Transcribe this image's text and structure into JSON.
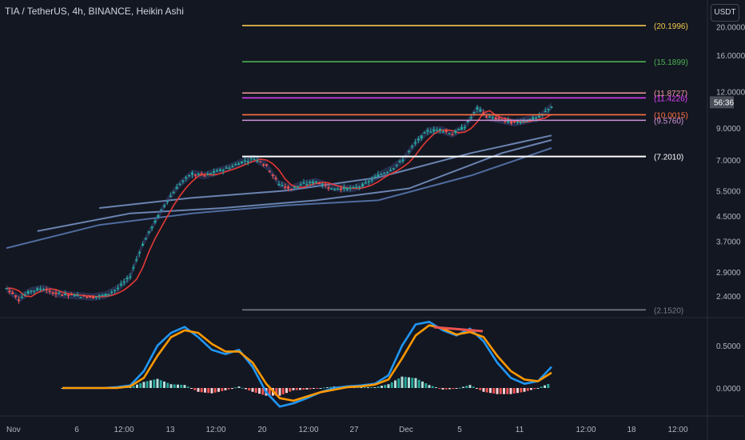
{
  "header": {
    "title": "TIA / TetherUS, 4h, BINANCE, Heikin Ashi",
    "currency_button": "USDT"
  },
  "price_badge": {
    "countdown": "56:36"
  },
  "colors": {
    "background": "#131722",
    "up": "#26a69a",
    "down": "#ef5350",
    "lvl_20": "#f2c94c",
    "lvl_15": "#4caf50",
    "lvl_11_87": "#ef9a9a",
    "lvl_11_42": "#e040fb",
    "lvl_10": "#ff7043",
    "lvl_9_57": "#ce93d8",
    "lvl_7_2": "#ffffff",
    "lvl_2_15": "#787b86",
    "osc_fast": "#2196f3",
    "osc_slow": "#ff9800"
  },
  "chart_data": [
    {
      "type": "candlestick",
      "scale": "log",
      "y_ticks": [
        "20.0000",
        "16.0000",
        "12.0000",
        "9.0000",
        "7.0000",
        "5.5000",
        "4.5000",
        "3.7000",
        "2.9000",
        "2.4000"
      ],
      "x_ticks": [
        "Nov",
        "6",
        "12:00",
        "13",
        "12:00",
        "20",
        "12:00",
        "27",
        "Dec",
        "5",
        "11",
        "12:00",
        "18",
        "12:00"
      ],
      "levels": [
        {
          "label": "(20.1996)",
          "value": 20.1996,
          "color": "lvl_20"
        },
        {
          "label": "(15.1899)",
          "value": 15.1899,
          "color": "lvl_15"
        },
        {
          "label": "(11.8727)",
          "value": 11.8727,
          "color": "lvl_11_87"
        },
        {
          "label": "(11.4226)",
          "value": 11.4226,
          "color": "lvl_11_42"
        },
        {
          "label": "(10.0015)",
          "value": 10.0015,
          "color": "lvl_10"
        },
        {
          "label": "(9.5760)",
          "value": 9.576,
          "color": "lvl_9_57"
        },
        {
          "label": "(7.2010)",
          "value": 7.201,
          "color": "lvl_7_2"
        },
        {
          "label": "(2.1520)",
          "value": 2.152,
          "color": "lvl_2_15"
        }
      ],
      "price_path": [
        [
          0,
          2.55
        ],
        [
          4,
          2.35
        ],
        [
          8,
          2.5
        ],
        [
          12,
          2.55
        ],
        [
          16,
          2.45
        ],
        [
          20,
          2.42
        ],
        [
          24,
          2.4
        ],
        [
          28,
          2.38
        ],
        [
          32,
          2.42
        ],
        [
          36,
          2.55
        ],
        [
          40,
          2.8
        ],
        [
          44,
          3.6
        ],
        [
          48,
          4.3
        ],
        [
          52,
          5.1
        ],
        [
          56,
          5.8
        ],
        [
          60,
          6.3
        ],
        [
          64,
          6.2
        ],
        [
          68,
          6.4
        ],
        [
          72,
          6.6
        ],
        [
          76,
          6.9
        ],
        [
          80,
          7.1
        ],
        [
          84,
          6.7
        ],
        [
          88,
          5.8
        ],
        [
          92,
          5.6
        ],
        [
          96,
          5.8
        ],
        [
          100,
          5.9
        ],
        [
          104,
          5.7
        ],
        [
          108,
          5.6
        ],
        [
          112,
          5.6
        ],
        [
          116,
          5.8
        ],
        [
          120,
          6.2
        ],
        [
          124,
          6.5
        ],
        [
          128,
          7.0
        ],
        [
          132,
          8.0
        ],
        [
          136,
          8.8
        ],
        [
          140,
          8.9
        ],
        [
          144,
          8.6
        ],
        [
          148,
          9.1
        ],
        [
          152,
          10.5
        ],
        [
          156,
          9.8
        ],
        [
          160,
          9.6
        ],
        [
          164,
          9.4
        ],
        [
          168,
          9.6
        ],
        [
          172,
          9.8
        ],
        [
          176,
          10.7
        ]
      ],
      "moving_averages": [
        [
          [
            0,
            3.5
          ],
          [
            30,
            4.2
          ],
          [
            60,
            4.6
          ],
          [
            90,
            4.9
          ],
          [
            120,
            5.1
          ],
          [
            150,
            6.2
          ],
          [
            176,
            7.7
          ]
        ],
        [
          [
            10,
            4.0
          ],
          [
            40,
            4.6
          ],
          [
            70,
            4.8
          ],
          [
            100,
            5.1
          ],
          [
            130,
            5.6
          ],
          [
            160,
            7.4
          ],
          [
            176,
            8.2
          ]
        ],
        [
          [
            30,
            4.8
          ],
          [
            60,
            5.2
          ],
          [
            90,
            5.5
          ],
          [
            120,
            6.1
          ],
          [
            150,
            7.4
          ],
          [
            176,
            8.5
          ]
        ]
      ]
    },
    {
      "type": "line",
      "y_ticks": [
        "0.5000",
        "0.0000"
      ],
      "series": [
        {
          "color": "osc_fast",
          "values": [
            0,
            0,
            0,
            0,
            0.01,
            0.03,
            0.2,
            0.5,
            0.65,
            0.72,
            0.6,
            0.45,
            0.4,
            0.45,
            0.25,
            -0.05,
            -0.22,
            -0.18,
            -0.12,
            -0.05,
            0,
            0.02,
            0.03,
            0.05,
            0.15,
            0.5,
            0.75,
            0.78,
            0.68,
            0.62,
            0.7,
            0.55,
            0.3,
            0.12,
            0.05,
            0.08,
            0.25
          ]
        },
        {
          "color": "osc_slow",
          "values": [
            0,
            0,
            0,
            0,
            0,
            0.02,
            0.12,
            0.38,
            0.6,
            0.68,
            0.65,
            0.52,
            0.43,
            0.43,
            0.3,
            0.05,
            -0.12,
            -0.15,
            -0.1,
            -0.05,
            -0.02,
            0.01,
            0.02,
            0.04,
            0.1,
            0.35,
            0.62,
            0.74,
            0.7,
            0.63,
            0.66,
            0.6,
            0.38,
            0.2,
            0.1,
            0.08,
            0.18
          ]
        }
      ]
    }
  ]
}
